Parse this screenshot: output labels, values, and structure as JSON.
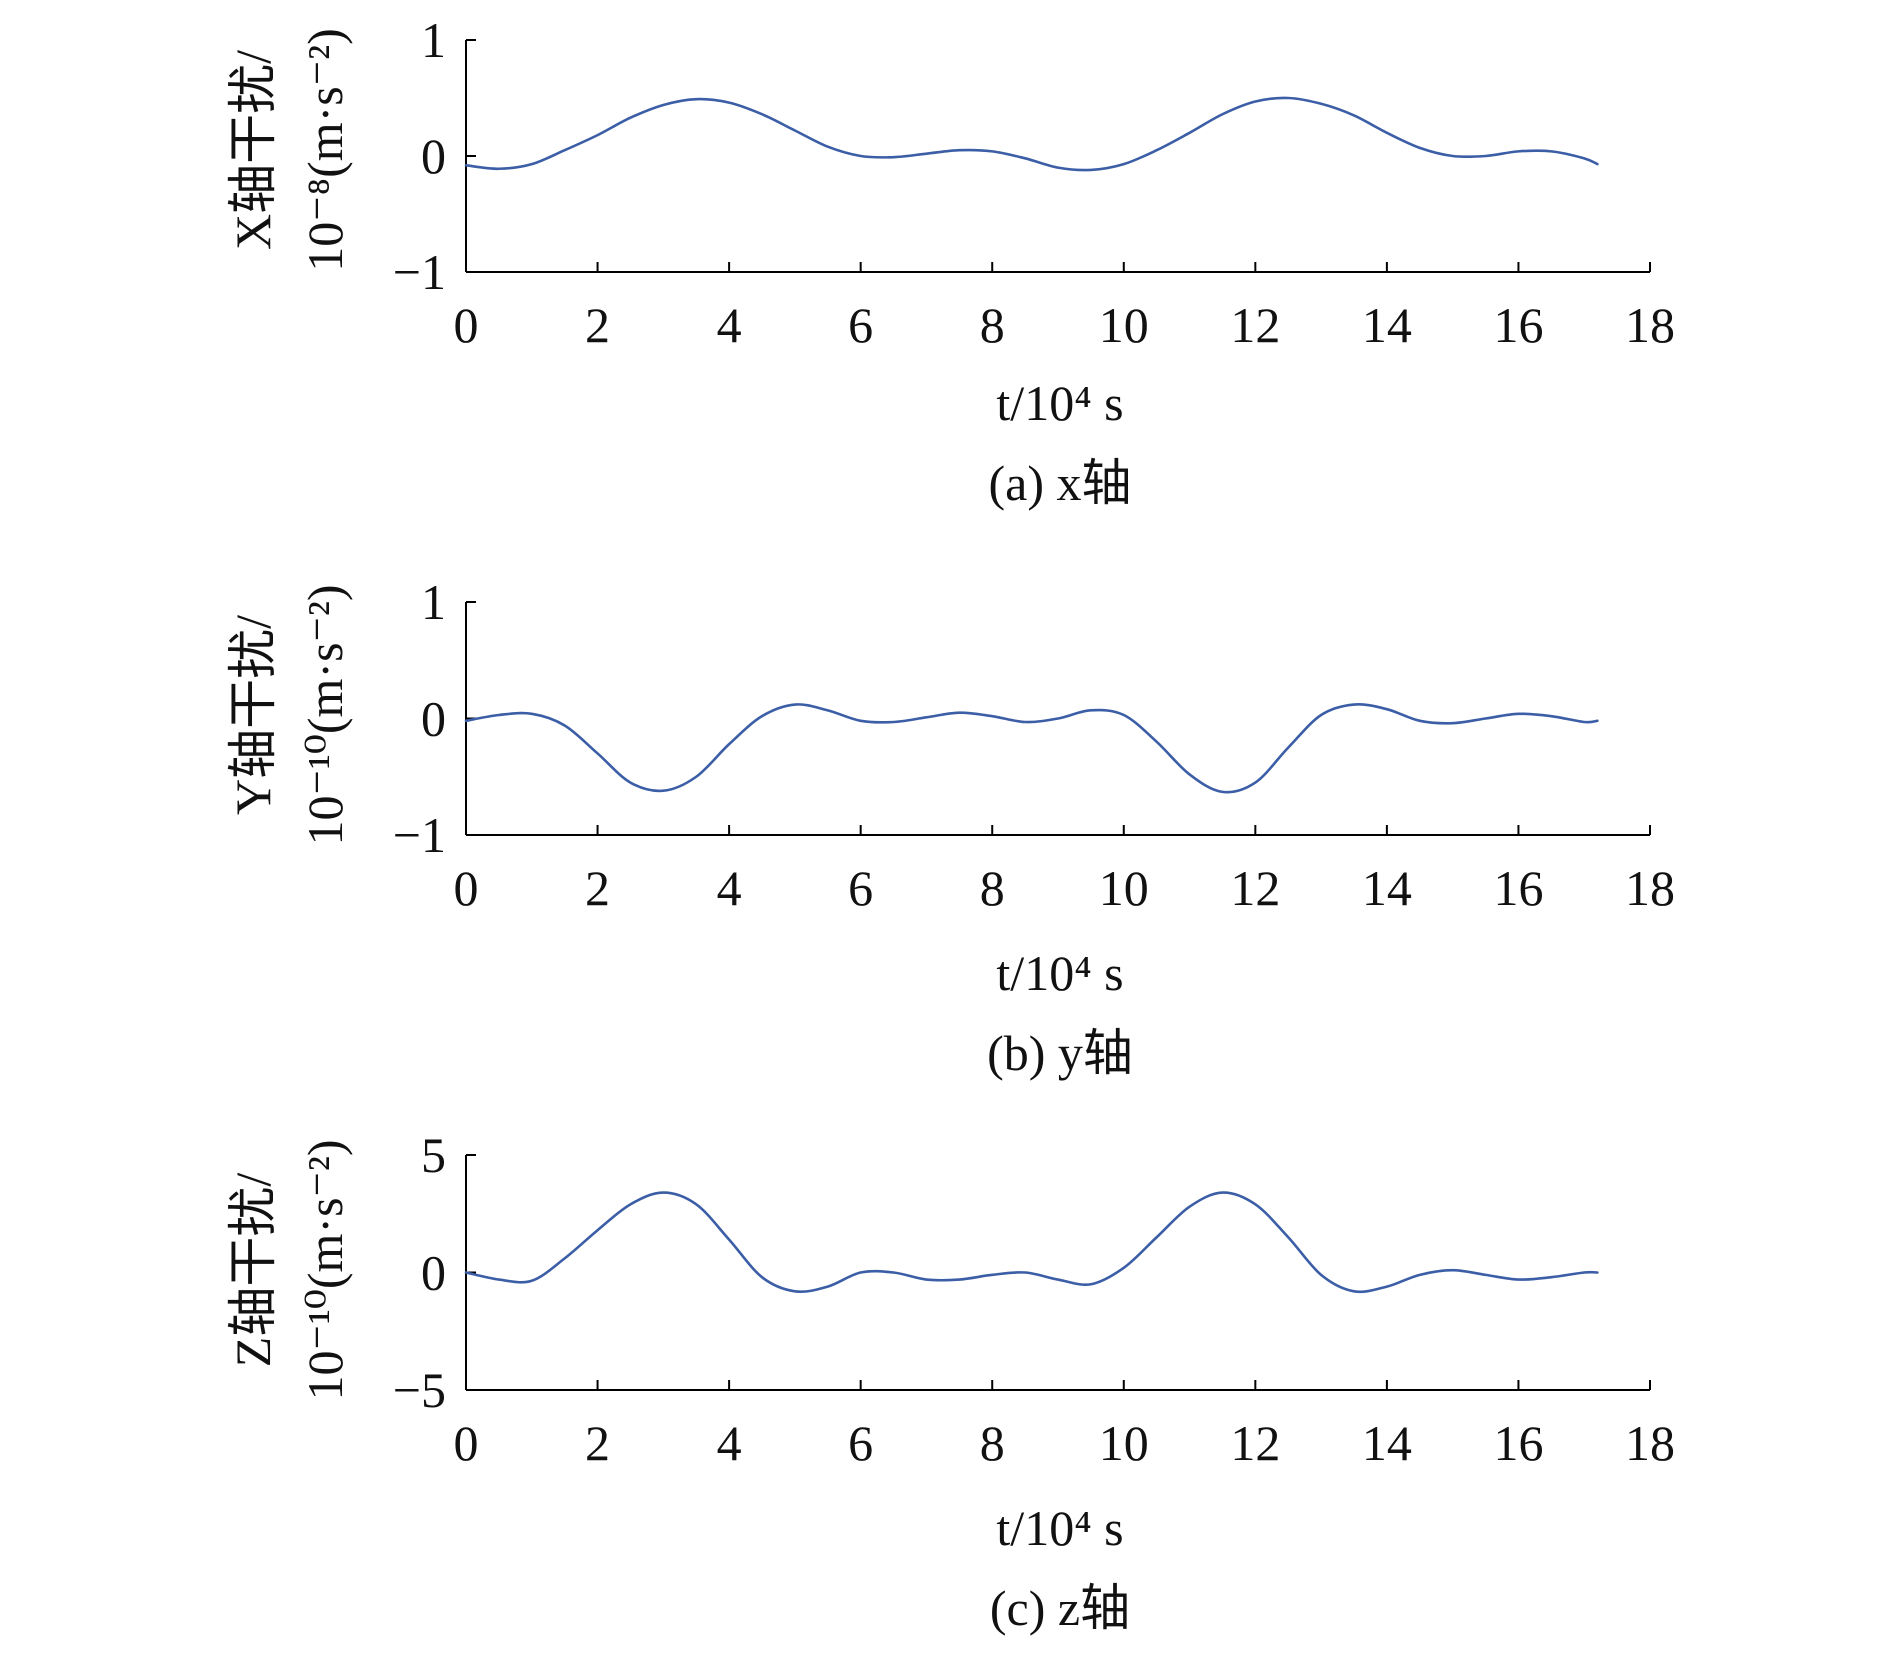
{
  "figure": {
    "line_color": "#3b5ea6"
  },
  "chart_data": [
    {
      "type": "line",
      "panel_caption": "(a) x轴",
      "xlabel": "t/10⁴ s",
      "ylabel_line1": "X轴干扰/",
      "ylabel_line2": "10⁻⁸(m·s⁻²)",
      "xlim": [
        0,
        18
      ],
      "ylim": [
        -1,
        1
      ],
      "xticks": [
        0,
        2,
        4,
        6,
        8,
        10,
        12,
        14,
        16,
        18
      ],
      "xtick_labels": [
        "0",
        "2",
        "4",
        "6",
        "8",
        "10",
        "12",
        "14",
        "16",
        "18"
      ],
      "yticks": [
        -1,
        0,
        1
      ],
      "ytick_labels": [
        "−1",
        "0",
        "1"
      ],
      "x": [
        0,
        0.5,
        1,
        1.5,
        2,
        2.5,
        3,
        3.5,
        4,
        4.5,
        5,
        5.5,
        6,
        6.5,
        7,
        7.5,
        8,
        8.5,
        9,
        9.5,
        10,
        10.5,
        11,
        11.5,
        12,
        12.5,
        13,
        13.5,
        14,
        14.5,
        15,
        15.5,
        16,
        16.5,
        17,
        17.2
      ],
      "y": [
        -0.08,
        -0.11,
        -0.07,
        0.05,
        0.18,
        0.33,
        0.44,
        0.49,
        0.46,
        0.36,
        0.22,
        0.08,
        0.0,
        -0.01,
        0.02,
        0.05,
        0.04,
        -0.02,
        -0.1,
        -0.12,
        -0.07,
        0.05,
        0.2,
        0.36,
        0.47,
        0.5,
        0.45,
        0.35,
        0.2,
        0.07,
        0.0,
        0.0,
        0.04,
        0.04,
        -0.02,
        -0.07
      ]
    },
    {
      "type": "line",
      "panel_caption": "(b) y轴",
      "xlabel": "t/10⁴ s",
      "ylabel_line1": "Y轴干扰/",
      "ylabel_line2": "10⁻¹⁰(m·s⁻²)",
      "xlim": [
        0,
        18
      ],
      "ylim": [
        -1,
        1
      ],
      "xticks": [
        0,
        2,
        4,
        6,
        8,
        10,
        12,
        14,
        16,
        18
      ],
      "xtick_labels": [
        "0",
        "2",
        "4",
        "6",
        "8",
        "10",
        "12",
        "14",
        "16",
        "18"
      ],
      "yticks": [
        -1,
        0,
        1
      ],
      "ytick_labels": [
        "−1",
        "0",
        "1"
      ],
      "x": [
        0,
        0.5,
        1,
        1.5,
        2,
        2.5,
        3,
        3.5,
        4,
        4.5,
        5,
        5.5,
        6,
        6.5,
        7,
        7.5,
        8,
        8.5,
        9,
        9.5,
        10,
        10.5,
        11,
        11.5,
        12,
        12.5,
        13,
        13.5,
        14,
        14.5,
        15,
        15.5,
        16,
        16.5,
        17,
        17.2
      ],
      "y": [
        -0.02,
        0.03,
        0.04,
        -0.06,
        -0.3,
        -0.55,
        -0.62,
        -0.5,
        -0.22,
        0.02,
        0.12,
        0.07,
        -0.02,
        -0.03,
        0.01,
        0.05,
        0.02,
        -0.03,
        0.0,
        0.07,
        0.03,
        -0.2,
        -0.48,
        -0.63,
        -0.55,
        -0.25,
        0.03,
        0.12,
        0.08,
        -0.02,
        -0.04,
        0.0,
        0.04,
        0.02,
        -0.03,
        -0.02
      ]
    },
    {
      "type": "line",
      "panel_caption": "(c) z轴",
      "xlabel": "t/10⁴ s",
      "ylabel_line1": "Z轴干扰/",
      "ylabel_line2": "10⁻¹⁰(m·s⁻²)",
      "xlim": [
        0,
        18
      ],
      "ylim": [
        -5,
        5
      ],
      "xticks": [
        0,
        2,
        4,
        6,
        8,
        10,
        12,
        14,
        16,
        18
      ],
      "xtick_labels": [
        "0",
        "2",
        "4",
        "6",
        "8",
        "10",
        "12",
        "14",
        "16",
        "18"
      ],
      "yticks": [
        -5,
        0,
        5
      ],
      "ytick_labels": [
        "−5",
        "0",
        "5"
      ],
      "x": [
        0,
        0.5,
        1,
        1.5,
        2,
        2.5,
        3,
        3.5,
        4,
        4.5,
        5,
        5.5,
        6,
        6.5,
        7,
        7.5,
        8,
        8.5,
        9,
        9.5,
        10,
        10.5,
        11,
        11.5,
        12,
        12.5,
        13,
        13.5,
        14,
        14.5,
        15,
        15.5,
        16,
        16.5,
        17,
        17.2
      ],
      "y": [
        0.0,
        -0.3,
        -0.35,
        0.6,
        1.8,
        2.9,
        3.4,
        2.9,
        1.4,
        -0.2,
        -0.8,
        -0.6,
        0.0,
        0.0,
        -0.3,
        -0.3,
        -0.1,
        0.0,
        -0.3,
        -0.5,
        0.2,
        1.5,
        2.8,
        3.4,
        2.9,
        1.5,
        -0.1,
        -0.8,
        -0.6,
        -0.1,
        0.1,
        -0.1,
        -0.3,
        -0.2,
        0.0,
        0.0
      ]
    }
  ]
}
